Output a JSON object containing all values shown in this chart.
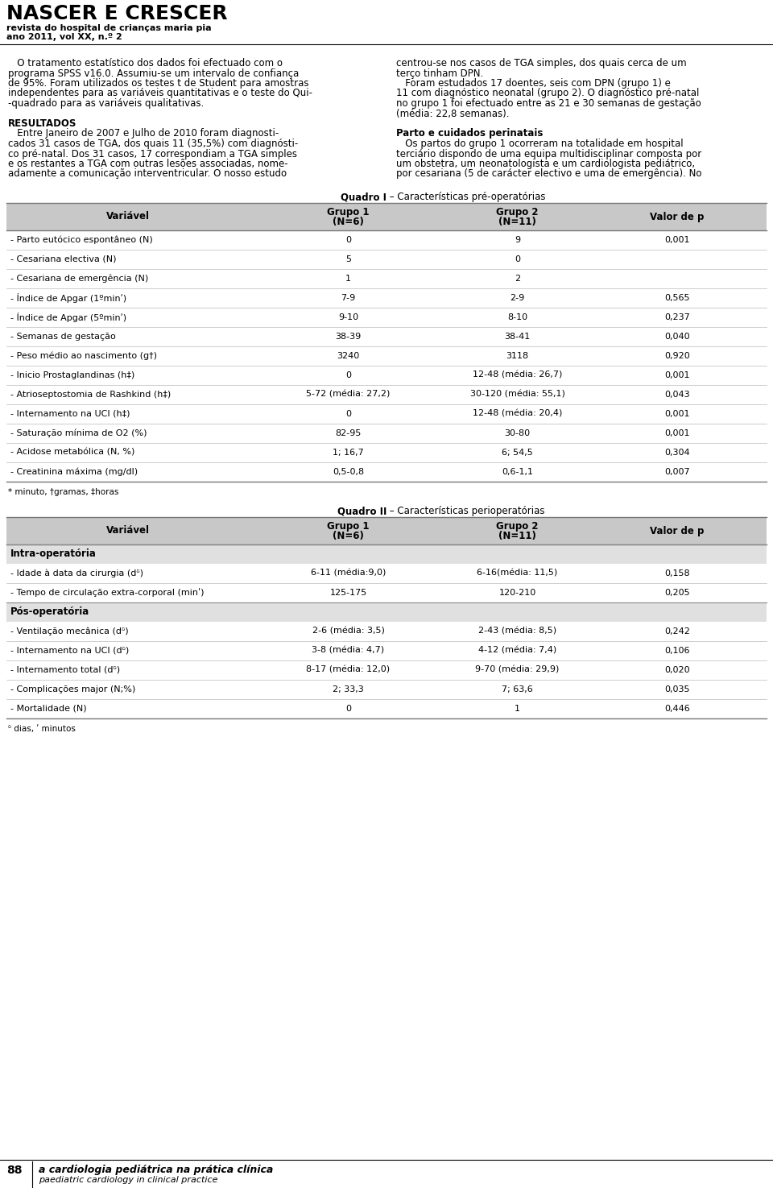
{
  "header_title": "NASCER E CRESCER",
  "header_sub1": "revista do hospital de crianças maria pia",
  "header_sub2": "ano 2011, vol XX, n.º 2",
  "table1_title_bold": "Quadro I",
  "table1_title_normal": " – Características pré-operatórias",
  "table1_header": [
    "Variável",
    "Grupo 1\n(N=6)",
    "Grupo 2\n(N=11)",
    "Valor de p"
  ],
  "table1_rows": [
    [
      "- Parto eutócico espontâneo (N)",
      "0",
      "9",
      "0,001"
    ],
    [
      "- Cesariana electiva (N)",
      "5",
      "0",
      ""
    ],
    [
      "- Cesariana de emergência (N)",
      "1",
      "2",
      ""
    ],
    [
      "- Índice de Apgar (1ºminʹ)",
      "7-9",
      "2-9",
      "0,565"
    ],
    [
      "- Índice de Apgar (5ºminʹ)",
      "9-10",
      "8-10",
      "0,237"
    ],
    [
      "- Semanas de gestação",
      "38-39",
      "38-41",
      "0,040"
    ],
    [
      "- Peso médio ao nascimento (g†)",
      "3240",
      "3118",
      "0,920"
    ],
    [
      "- Inicio Prostaglandinas (h‡)",
      "0",
      "12-48 (média: 26,7)",
      "0,001"
    ],
    [
      "- Atrioseptostomia de Rashkind (h‡)",
      "5-72 (média: 27,2)",
      "30-120 (média: 55,1)",
      "0,043"
    ],
    [
      "- Internamento na UCI (h‡)",
      "0",
      "12-48 (média: 20,4)",
      "0,001"
    ],
    [
      "- Saturação mínima de O2 (%)",
      "82-95",
      "30-80",
      "0,001"
    ],
    [
      "- Acidose metabólica (N, %)",
      "1; 16,7",
      "6; 54,5",
      "0,304"
    ],
    [
      "- Creatinina máxima (mg/dl)",
      "0,5-0,8",
      "0,6-1,1",
      "0,007"
    ]
  ],
  "table1_footnote": "* minuto, †gramas, ‡horas",
  "table2_title_bold": "Quadro II",
  "table2_title_normal": " – Características perioperatórias",
  "table2_header": [
    "Variável",
    "Grupo 1\n(N=6)",
    "Grupo 2\n(N=11)",
    "Valor de p"
  ],
  "table2_sections": [
    {
      "section_label": "Intra-operatória",
      "rows": [
        [
          "- Idade à data da cirurgia (dᵟ)",
          "6-11 (média:9,0)",
          "6-16(média: 11,5)",
          "0,158"
        ],
        [
          "- Tempo de circulação extra-corporal (minʹ)",
          "125-175",
          "120-210",
          "0,205"
        ]
      ]
    },
    {
      "section_label": "Pós-operatória",
      "rows": [
        [
          "- Ventilação mecânica (dᵟ)",
          "2-6 (média: 3,5)",
          "2-43 (média: 8,5)",
          "0,242"
        ],
        [
          "- Internamento na UCI (dᵟ)",
          "3-8 (média: 4,7)",
          "4-12 (média: 7,4)",
          "0,106"
        ],
        [
          "- Internamento total (dᵟ)",
          "8-17 (média: 12,0)",
          "9-70 (média: 29,9)",
          "0,020"
        ],
        [
          "- Complicações major (N;%)",
          "2; 33,3",
          "7; 63,6",
          "0,035"
        ],
        [
          "- Mortalidade (N)",
          "0",
          "1",
          "0,446"
        ]
      ]
    }
  ],
  "table2_footnote": "ᵟ dias, ʹ minutos",
  "footer_page": "88",
  "footer_text_italic": "a cardiologia pediátrica na prática clínica",
  "footer_text_normal": "paediatric cardiology in clinical practice",
  "table_header_bg": "#c8c8c8",
  "table_section_bg": "#e0e0e0",
  "bg_color": "#ffffff",
  "left_col_lines": [
    [
      "   O tratamento estatístico dos dados foi efectuado com o",
      "normal"
    ],
    [
      "programa SPSS v16.0. Assumiu-se um intervalo de confiança",
      "normal"
    ],
    [
      "de 95%. Foram utilizados os testes t de Student para amostras",
      "normal"
    ],
    [
      "independentes para as variáveis quantitativas e o teste do Qui-",
      "normal"
    ],
    [
      "-quadrado para as variáveis qualitativas.",
      "normal"
    ],
    [
      "",
      "normal"
    ],
    [
      "RESULTADOS",
      "bold"
    ],
    [
      "   Entre Janeiro de 2007 e Julho de 2010 foram diagnosti-",
      "normal"
    ],
    [
      "cados 31 casos de TGA, dos quais 11 (35,5%) com diagnósti-",
      "normal"
    ],
    [
      "co pré-natal. Dos 31 casos, 17 correspondiam a TGA simples",
      "normal"
    ],
    [
      "e os restantes a TGA com outras lesões associadas, nome-",
      "normal"
    ],
    [
      "adamente a comunicação interventricular. O nosso estudo",
      "normal"
    ]
  ],
  "right_col_lines": [
    [
      "centrou-se nos casos de TGA simples, dos quais cerca de um",
      "normal"
    ],
    [
      "terço tinham DPN.",
      "normal"
    ],
    [
      "   Foram estudados 17 doentes, seis com DPN (grupo 1) e",
      "normal"
    ],
    [
      "11 com diagnóstico neonatal (grupo 2). O diagnóstico pré-natal",
      "normal"
    ],
    [
      "no grupo 1 foi efectuado entre as 21 e 30 semanas de gestação",
      "normal"
    ],
    [
      "(média: 22,8 semanas).",
      "normal"
    ],
    [
      "",
      "normal"
    ],
    [
      "Parto e cuidados perinatais",
      "bold"
    ],
    [
      "   Os partos do grupo 1 ocorreram na totalidade em hospital",
      "normal"
    ],
    [
      "terciário dispondo de uma equipa multidisciplinar composta por",
      "normal"
    ],
    [
      "um obstetra, um neonatologista e um cardiologista pediátrico,",
      "normal"
    ],
    [
      "por cesariana (5 de carácter electivo e uma de emergência). No",
      "normal"
    ]
  ]
}
